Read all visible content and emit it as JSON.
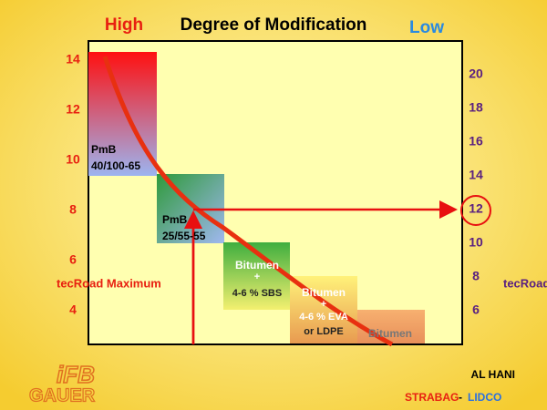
{
  "header": {
    "high": "High",
    "title": "Degree of Modification",
    "low": "Low"
  },
  "left_axis": {
    "ticks": [
      14,
      12,
      10,
      8,
      6,
      4
    ],
    "label": "tecRoad Maximum"
  },
  "right_axis": {
    "ticks": [
      20,
      18,
      16,
      14,
      12,
      10,
      8,
      6
    ],
    "label": "tecRoad"
  },
  "boxes": [
    {
      "lines": [
        "PmB",
        "40/100-65"
      ]
    },
    {
      "lines": [
        "PmB",
        "25/55-55"
      ]
    },
    {
      "lines": [
        "Bitumen",
        "+",
        "4-6 % SBS"
      ]
    },
    {
      "lines": [
        "Bitumen",
        "+",
        "4-6 % EVA",
        "or LDPE"
      ]
    },
    {
      "lines": [
        "Bitumen"
      ]
    }
  ],
  "footer": {
    "author": "AL HANI",
    "company1": "STRABAG",
    "separator": "-",
    "company2": "LIDCO",
    "logo_top": "iFB",
    "logo_bottom": "GAUER"
  }
}
